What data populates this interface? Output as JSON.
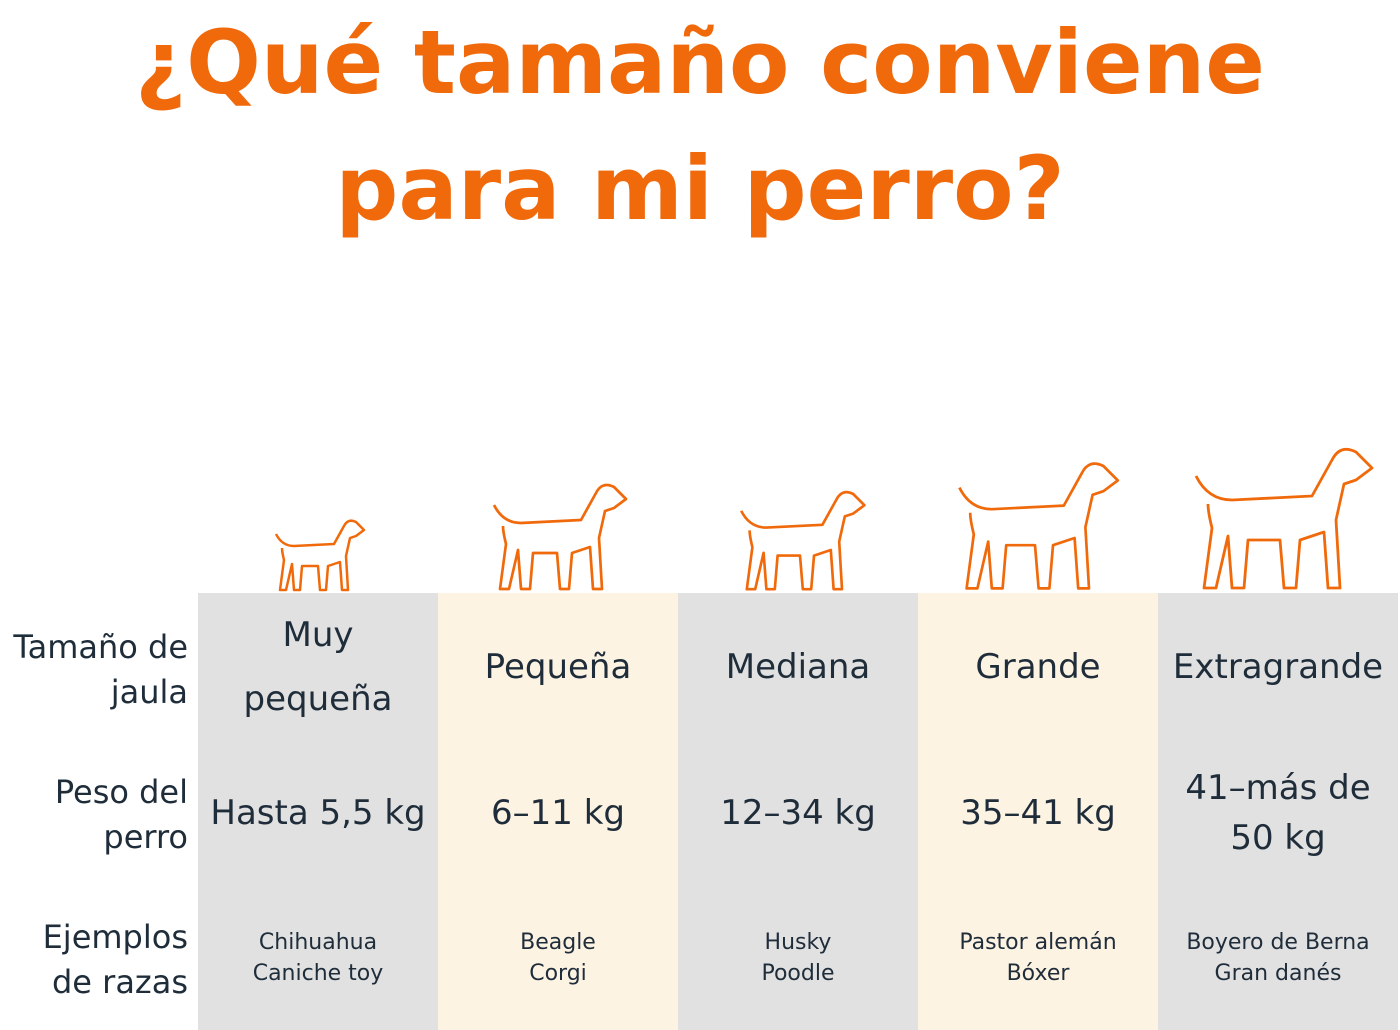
{
  "header": {
    "title": "¿Qué tamaño conviene para mi perro?"
  },
  "table": {
    "row_labels": [
      "Tamaño de jaula",
      "Peso del perro",
      "Ejemplos de razas"
    ],
    "columns": [
      {
        "size": "Muy pequeña",
        "weight": "Hasta 5,5 kg",
        "breeds": [
          "Chihuahua",
          "Caniche toy"
        ]
      },
      {
        "size": "Pequeña",
        "weight": "6–11 kg",
        "breeds": [
          "Beagle",
          "Corgi"
        ]
      },
      {
        "size": "Mediana",
        "weight": "12–34 kg",
        "breeds": [
          "Husky",
          "Poodle"
        ]
      },
      {
        "size": "Grande",
        "weight": "35–41 kg",
        "breeds": [
          "Pastor alemán",
          "Bóxer"
        ]
      },
      {
        "size": "Extragrande",
        "weight": "41–más de 50 kg",
        "breeds": [
          "Boyero de Berna",
          "Gran danés"
        ]
      }
    ]
  }
}
